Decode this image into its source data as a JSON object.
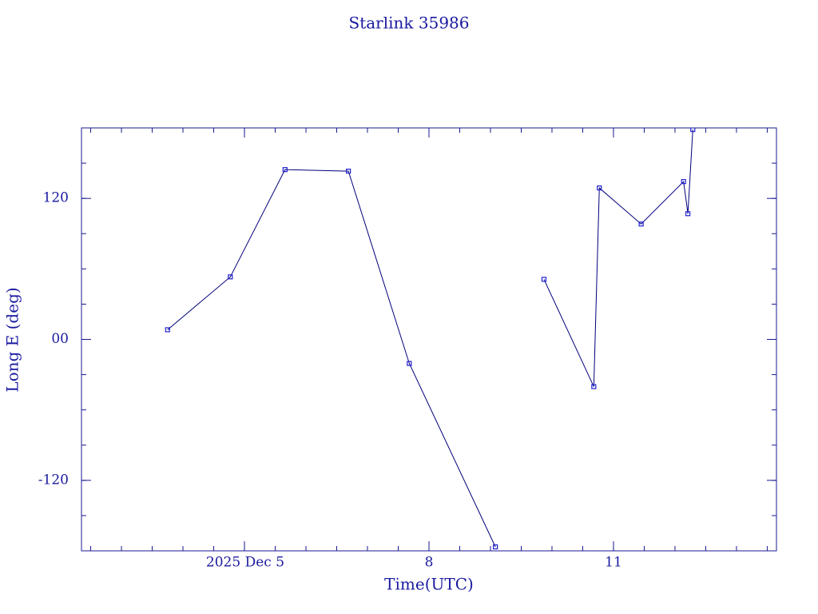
{
  "chart_data": {
    "type": "line",
    "title": "Starlink 35986",
    "x_label": "Time(UTC)",
    "y_label": "Long E (deg)",
    "x": [
      3.75,
      4.77,
      5.66,
      6.69,
      7.68,
      9.08,
      null,
      9.87,
      10.68,
      10.77,
      11.45,
      12.14,
      12.21,
      12.29
    ],
    "series": [
      {
        "name": "Long E",
        "color": "#00007a",
        "values": [
          8.2,
          53.2,
          144.5,
          143.2,
          -20.5,
          -176.6,
          null,
          51.1,
          -40.2,
          128.9,
          98.2,
          134.3,
          107.0,
          178.6
        ]
      }
    ],
    "xlim": [
      2.35,
      13.65
    ],
    "xticks": [
      {
        "value": 5,
        "label": "2025 Dec  5"
      },
      8,
      11
    ],
    "ylim": [
      -180,
      180
    ],
    "yticks": [
      -120,
      {
        "value": 0,
        "label": "00"
      },
      120
    ]
  }
}
